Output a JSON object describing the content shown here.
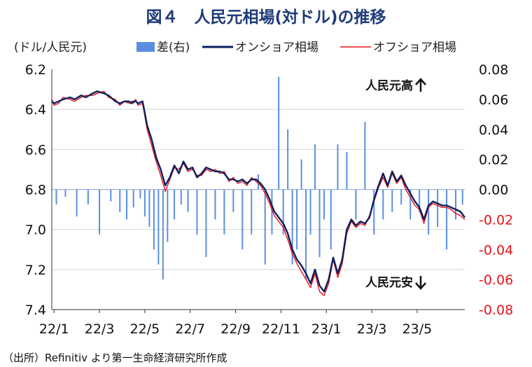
{
  "title": "図４　人民元相場(対ドル)の推移",
  "source": "（出所）Refinitiv より第一生命経済研究所作成",
  "chart_data": {
    "type": "line",
    "left_axis": {
      "unit_label": "(ドル/人民元)",
      "ylim": [
        7.4,
        6.2
      ],
      "inverted": true,
      "ticks": [
        "6.2",
        "6.4",
        "6.6",
        "6.8",
        "7.0",
        "7.2",
        "7.4"
      ]
    },
    "right_axis": {
      "ylim": [
        -0.08,
        0.08
      ],
      "ticks": [
        "0.08",
        "0.06",
        "0.04",
        "0.02",
        "0.00",
        "-0.02",
        "-0.04",
        "-0.06",
        "-0.08"
      ]
    },
    "x_ticks": [
      "22/1",
      "22/3",
      "22/5",
      "22/7",
      "22/9",
      "22/11",
      "23/1",
      "23/3",
      "23/5"
    ],
    "legend": [
      "差(右)",
      "オンショア相場",
      "オフショア相場"
    ],
    "annotations": {
      "up": "人民元高",
      "down": "人民元安"
    },
    "colors": {
      "diff": "#5a8fe0",
      "onshore": "#0e1f5c",
      "offshore": "#e8141b",
      "grid": "#d4d4d4",
      "neg_ticks": "#e8141b"
    },
    "series": [
      {
        "name": "オンショア相場",
        "x": [
          0.0,
          0.1,
          0.3,
          0.5,
          0.8,
          1.0,
          1.3,
          1.5,
          1.8,
          2.0,
          2.3,
          2.5,
          2.8,
          3.0,
          3.2,
          3.4,
          3.5,
          3.6,
          3.7,
          3.8,
          4.0,
          4.2,
          4.4,
          4.6,
          4.8,
          5.0,
          5.2,
          5.4,
          5.6,
          5.8,
          6.0,
          6.2,
          6.4,
          6.6,
          6.8,
          7.0,
          7.2,
          7.4,
          7.6,
          7.8,
          8.0,
          8.2,
          8.4,
          8.6,
          8.8,
          9.0,
          9.2,
          9.4,
          9.6,
          9.8,
          10.0,
          10.2,
          10.4,
          10.6,
          10.8,
          11.0,
          11.2,
          11.4,
          11.6,
          11.8,
          12.0,
          12.2,
          12.4,
          12.6,
          12.8,
          13.0,
          13.2,
          13.4,
          13.6,
          13.8,
          14.0,
          14.2,
          14.4,
          14.6,
          14.8,
          15.0,
          15.2,
          15.4,
          15.6,
          15.8,
          16.0,
          16.2,
          16.4,
          16.6,
          16.8,
          17.0,
          17.2,
          17.4,
          17.6,
          17.8,
          18.0,
          18.2
        ],
        "values": [
          6.36,
          6.37,
          6.36,
          6.35,
          6.34,
          6.35,
          6.33,
          6.34,
          6.32,
          6.31,
          6.32,
          6.33,
          6.36,
          6.37,
          6.36,
          6.36,
          6.37,
          6.36,
          6.36,
          6.37,
          6.36,
          6.48,
          6.55,
          6.64,
          6.7,
          6.78,
          6.74,
          6.68,
          6.72,
          6.66,
          6.7,
          6.69,
          6.74,
          6.72,
          6.69,
          6.7,
          6.71,
          6.71,
          6.72,
          6.75,
          6.75,
          6.76,
          6.75,
          6.77,
          6.75,
          6.75,
          6.77,
          6.8,
          6.85,
          6.91,
          6.94,
          6.97,
          7.02,
          7.1,
          7.15,
          7.18,
          7.22,
          7.27,
          7.2,
          7.28,
          7.31,
          7.25,
          7.14,
          7.22,
          7.15,
          7.0,
          6.95,
          6.98,
          6.96,
          6.97,
          6.94,
          6.85,
          6.78,
          6.72,
          6.78,
          6.71,
          6.76,
          6.73,
          6.78,
          6.82,
          6.86,
          6.89,
          6.95,
          6.88,
          6.86,
          6.87,
          6.88,
          6.88,
          6.89,
          6.9,
          6.91,
          6.94
        ]
      },
      {
        "name": "オフショア相場",
        "x": [
          0.0,
          0.1,
          0.3,
          0.5,
          0.8,
          1.0,
          1.3,
          1.5,
          1.8,
          2.0,
          2.3,
          2.5,
          2.8,
          3.0,
          3.2,
          3.4,
          3.5,
          3.6,
          3.7,
          3.8,
          4.0,
          4.2,
          4.4,
          4.6,
          4.8,
          5.0,
          5.2,
          5.4,
          5.6,
          5.8,
          6.0,
          6.2,
          6.4,
          6.6,
          6.8,
          7.0,
          7.2,
          7.4,
          7.6,
          7.8,
          8.0,
          8.2,
          8.4,
          8.6,
          8.8,
          9.0,
          9.2,
          9.4,
          9.6,
          9.8,
          10.0,
          10.2,
          10.4,
          10.6,
          10.8,
          11.0,
          11.2,
          11.4,
          11.6,
          11.8,
          12.0,
          12.2,
          12.4,
          12.6,
          12.8,
          13.0,
          13.2,
          13.4,
          13.6,
          13.8,
          14.0,
          14.2,
          14.4,
          14.6,
          14.8,
          15.0,
          15.2,
          15.4,
          15.6,
          15.8,
          16.0,
          16.2,
          16.4,
          16.6,
          16.8,
          17.0,
          17.2,
          17.4,
          17.6,
          17.8,
          18.0,
          18.2
        ],
        "values": [
          6.35,
          6.38,
          6.37,
          6.34,
          6.35,
          6.36,
          6.34,
          6.33,
          6.33,
          6.32,
          6.31,
          6.34,
          6.35,
          6.38,
          6.36,
          6.37,
          6.36,
          6.37,
          6.35,
          6.38,
          6.37,
          6.5,
          6.58,
          6.66,
          6.73,
          6.81,
          6.75,
          6.69,
          6.7,
          6.67,
          6.71,
          6.7,
          6.73,
          6.73,
          6.7,
          6.71,
          6.7,
          6.72,
          6.71,
          6.76,
          6.74,
          6.77,
          6.76,
          6.78,
          6.74,
          6.76,
          6.78,
          6.82,
          6.87,
          6.93,
          6.96,
          6.99,
          7.05,
          7.12,
          7.17,
          7.21,
          7.25,
          7.29,
          7.22,
          7.31,
          7.33,
          7.27,
          7.15,
          7.24,
          7.17,
          7.02,
          6.96,
          6.99,
          6.97,
          6.98,
          6.93,
          6.86,
          6.79,
          6.74,
          6.79,
          6.72,
          6.77,
          6.74,
          6.8,
          6.84,
          6.88,
          6.9,
          6.97,
          6.89,
          6.87,
          6.88,
          6.89,
          6.89,
          6.9,
          6.92,
          6.93,
          6.95
        ]
      }
    ],
    "diff_series": {
      "name": "差(右)",
      "x": [
        0.2,
        0.6,
        1.1,
        1.6,
        2.1,
        2.6,
        3.0,
        3.3,
        3.6,
        3.9,
        4.1,
        4.3,
        4.5,
        4.7,
        4.9,
        5.1,
        5.4,
        5.7,
        6.0,
        6.4,
        6.8,
        7.2,
        7.6,
        8.0,
        8.4,
        8.8,
        9.1,
        9.4,
        9.7,
        10.0,
        10.2,
        10.4,
        10.6,
        10.8,
        11.0,
        11.2,
        11.4,
        11.6,
        11.8,
        12.0,
        12.3,
        12.6,
        13.0,
        13.4,
        13.8,
        14.2,
        14.6,
        15.0,
        15.4,
        15.8,
        16.2,
        16.6,
        17.0,
        17.4,
        17.8,
        18.1
      ],
      "values": [
        -0.01,
        -0.005,
        -0.018,
        -0.01,
        -0.03,
        -0.008,
        -0.015,
        -0.02,
        -0.012,
        -0.006,
        -0.018,
        -0.025,
        -0.04,
        -0.05,
        -0.06,
        -0.035,
        -0.02,
        -0.01,
        -0.015,
        -0.03,
        -0.045,
        -0.02,
        -0.03,
        -0.015,
        -0.04,
        -0.03,
        0.01,
        -0.05,
        -0.03,
        0.075,
        -0.03,
        0.04,
        -0.05,
        -0.04,
        0.02,
        -0.06,
        -0.03,
        0.03,
        -0.045,
        -0.02,
        -0.04,
        0.03,
        0.025,
        -0.02,
        0.045,
        -0.03,
        -0.02,
        -0.015,
        -0.01,
        -0.02,
        -0.015,
        -0.03,
        -0.025,
        -0.04,
        -0.02,
        -0.01
      ]
    }
  }
}
